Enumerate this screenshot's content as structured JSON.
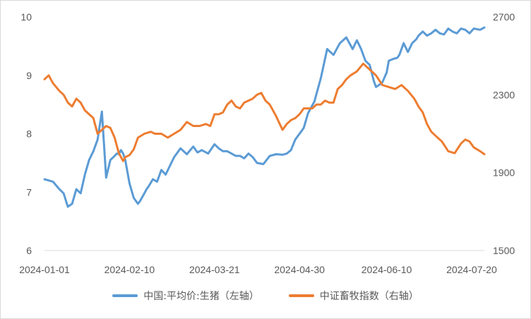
{
  "chart_data": {
    "type": "line",
    "title": "",
    "x_labels": [
      "2024-01-01",
      "2024-02-10",
      "2024-03-21",
      "2024-04-30",
      "2024-06-10",
      "2024-07-20"
    ],
    "x_range": [
      "2024-01-01",
      "2024-07-26"
    ],
    "grid": false,
    "legend_position": "bottom",
    "y_left": {
      "min": 6,
      "max": 10,
      "ticks": [
        "6",
        "7",
        "8",
        "9",
        "10"
      ]
    },
    "y_right": {
      "min": 1500,
      "max": 2700,
      "ticks": [
        "1500",
        "1900",
        "2300",
        "2700"
      ]
    },
    "series": [
      {
        "name": "中国:平均价:生猪（左轴）",
        "axis": "left",
        "color": "#5b9bd5",
        "x": [
          "2024-01-01",
          "2024-01-03",
          "2024-01-05",
          "2024-01-08",
          "2024-01-10",
          "2024-01-12",
          "2024-01-14",
          "2024-01-16",
          "2024-01-18",
          "2024-01-20",
          "2024-01-22",
          "2024-01-24",
          "2024-01-26",
          "2024-01-28",
          "2024-01-30",
          "2024-02-01",
          "2024-02-03",
          "2024-02-04",
          "2024-02-05",
          "2024-02-06",
          "2024-02-07",
          "2024-02-08",
          "2024-02-10",
          "2024-02-12",
          "2024-02-14",
          "2024-02-15",
          "2024-02-17",
          "2024-02-18",
          "2024-02-19",
          "2024-02-21",
          "2024-02-23",
          "2024-02-25",
          "2024-02-27",
          "2024-02-29",
          "2024-03-02",
          "2024-03-05",
          "2024-03-08",
          "2024-03-11",
          "2024-03-13",
          "2024-03-15",
          "2024-03-18",
          "2024-03-21",
          "2024-03-23",
          "2024-03-25",
          "2024-03-27",
          "2024-03-29",
          "2024-03-31",
          "2024-04-02",
          "2024-04-04",
          "2024-04-06",
          "2024-04-08",
          "2024-04-10",
          "2024-04-13",
          "2024-04-16",
          "2024-04-19",
          "2024-04-22",
          "2024-04-24",
          "2024-04-26",
          "2024-04-28",
          "2024-04-30",
          "2024-05-02",
          "2024-05-04",
          "2024-05-07",
          "2024-05-10",
          "2024-05-13",
          "2024-05-16",
          "2024-05-19",
          "2024-05-22",
          "2024-05-25",
          "2024-05-27",
          "2024-05-29",
          "2024-05-31",
          "2024-06-02",
          "2024-06-04",
          "2024-06-05",
          "2024-06-07",
          "2024-06-08",
          "2024-06-10",
          "2024-06-11",
          "2024-06-13",
          "2024-06-15",
          "2024-06-16",
          "2024-06-18",
          "2024-06-20",
          "2024-06-22",
          "2024-06-24",
          "2024-06-25",
          "2024-06-27",
          "2024-06-29",
          "2024-07-01",
          "2024-07-03",
          "2024-07-05",
          "2024-07-07",
          "2024-07-09",
          "2024-07-11",
          "2024-07-13",
          "2024-07-15",
          "2024-07-17",
          "2024-07-19",
          "2024-07-21",
          "2024-07-24",
          "2024-07-26"
        ],
        "values": [
          7.22,
          7.2,
          7.18,
          7.05,
          6.98,
          6.75,
          6.8,
          7.05,
          6.98,
          7.3,
          7.55,
          7.7,
          7.9,
          8.38,
          7.25,
          7.55,
          7.62,
          7.66,
          7.65,
          7.72,
          7.66,
          7.55,
          7.15,
          6.9,
          6.8,
          6.85,
          6.98,
          7.05,
          7.1,
          7.22,
          7.18,
          7.38,
          7.3,
          7.45,
          7.6,
          7.75,
          7.65,
          7.78,
          7.68,
          7.72,
          7.66,
          7.82,
          7.75,
          7.7,
          7.7,
          7.66,
          7.62,
          7.62,
          7.58,
          7.66,
          7.6,
          7.5,
          7.48,
          7.62,
          7.65,
          7.64,
          7.66,
          7.72,
          7.9,
          8.0,
          8.1,
          8.35,
          8.55,
          8.95,
          9.45,
          9.35,
          9.55,
          9.65,
          9.45,
          9.6,
          9.45,
          9.25,
          9.18,
          8.9,
          8.8,
          8.85,
          8.88,
          9.05,
          9.25,
          9.28,
          9.3,
          9.35,
          9.55,
          9.4,
          9.55,
          9.62,
          9.68,
          9.75,
          9.68,
          9.72,
          9.78,
          9.72,
          9.7,
          9.8,
          9.75,
          9.72,
          9.8,
          9.78,
          9.72,
          9.8,
          9.78,
          9.82
        ]
      },
      {
        "name": "中证畜牧指数（右轴）",
        "axis": "right",
        "color": "#ed7d31",
        "x": [
          "2024-01-01",
          "2024-01-03",
          "2024-01-05",
          "2024-01-08",
          "2024-01-10",
          "2024-01-12",
          "2024-01-14",
          "2024-01-16",
          "2024-01-18",
          "2024-01-20",
          "2024-01-22",
          "2024-01-24",
          "2024-01-26",
          "2024-01-28",
          "2024-01-30",
          "2024-02-01",
          "2024-02-03",
          "2024-02-05",
          "2024-02-07",
          "2024-02-08",
          "2024-02-10",
          "2024-02-12",
          "2024-02-14",
          "2024-02-17",
          "2024-02-20",
          "2024-02-22",
          "2024-02-25",
          "2024-02-28",
          "2024-03-02",
          "2024-03-05",
          "2024-03-08",
          "2024-03-11",
          "2024-03-14",
          "2024-03-17",
          "2024-03-19",
          "2024-03-21",
          "2024-03-23",
          "2024-03-25",
          "2024-03-27",
          "2024-03-29",
          "2024-03-31",
          "2024-04-02",
          "2024-04-04",
          "2024-04-06",
          "2024-04-08",
          "2024-04-10",
          "2024-04-12",
          "2024-04-14",
          "2024-04-16",
          "2024-04-19",
          "2024-04-22",
          "2024-04-24",
          "2024-04-26",
          "2024-04-28",
          "2024-04-30",
          "2024-05-02",
          "2024-05-04",
          "2024-05-06",
          "2024-05-08",
          "2024-05-10",
          "2024-05-12",
          "2024-05-14",
          "2024-05-16",
          "2024-05-18",
          "2024-05-20",
          "2024-05-22",
          "2024-05-24",
          "2024-05-27",
          "2024-05-30",
          "2024-06-02",
          "2024-06-05",
          "2024-06-08",
          "2024-06-11",
          "2024-06-14",
          "2024-06-17",
          "2024-06-20",
          "2024-06-23",
          "2024-06-25",
          "2024-06-27",
          "2024-06-29",
          "2024-07-01",
          "2024-07-03",
          "2024-07-06",
          "2024-07-09",
          "2024-07-12",
          "2024-07-15",
          "2024-07-17",
          "2024-07-19",
          "2024-07-21",
          "2024-07-24",
          "2024-07-26"
        ],
        "values": [
          2380,
          2400,
          2360,
          2320,
          2300,
          2260,
          2240,
          2280,
          2260,
          2220,
          2200,
          2180,
          2100,
          2120,
          2140,
          2130,
          2080,
          2000,
          1960,
          1980,
          1990,
          2020,
          2080,
          2100,
          2110,
          2100,
          2100,
          2080,
          2100,
          2120,
          2160,
          2140,
          2140,
          2150,
          2140,
          2200,
          2200,
          2210,
          2250,
          2270,
          2240,
          2230,
          2260,
          2270,
          2280,
          2300,
          2310,
          2270,
          2250,
          2190,
          2120,
          2150,
          2170,
          2180,
          2200,
          2230,
          2230,
          2230,
          2250,
          2250,
          2270,
          2260,
          2260,
          2330,
          2350,
          2380,
          2400,
          2420,
          2460,
          2430,
          2400,
          2350,
          2340,
          2330,
          2350,
          2320,
          2280,
          2240,
          2210,
          2150,
          2110,
          2090,
          2060,
          2010,
          2000,
          2050,
          2070,
          2060,
          2030,
          2010,
          1995
        ]
      }
    ]
  }
}
